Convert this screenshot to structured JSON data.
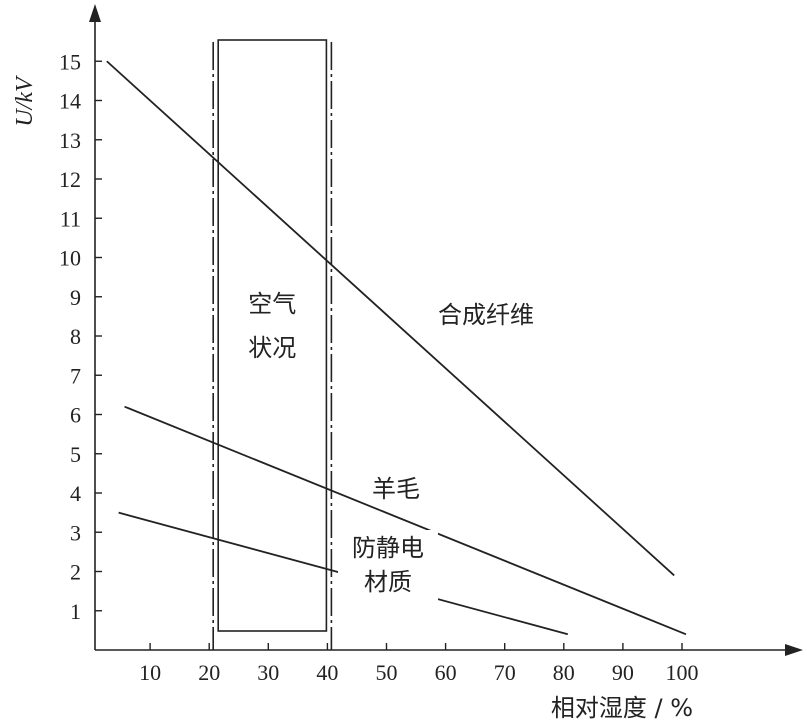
{
  "chart_data": {
    "type": "line",
    "xlabel": "相对湿度 / %",
    "ylabel": "U/kV",
    "xlim": [
      0,
      100
    ],
    "ylim": [
      0,
      15
    ],
    "x_ticks": [
      10,
      20,
      30,
      40,
      50,
      60,
      70,
      80,
      90,
      100
    ],
    "y_ticks": [
      1,
      2,
      3,
      4,
      5,
      6,
      7,
      8,
      9,
      10,
      11,
      12,
      13,
      14,
      15
    ],
    "grid": false,
    "band": {
      "label_lines": [
        "空气",
        "状况"
      ],
      "x_range": [
        20,
        40
      ]
    },
    "series": [
      {
        "name": "合成纤维",
        "x": [
          2,
          98
        ],
        "y": [
          15,
          1.9
        ]
      },
      {
        "name": "羊毛",
        "x": [
          5,
          100
        ],
        "y": [
          6.2,
          0.4
        ]
      },
      {
        "name": "防静电\n材质",
        "x": [
          4,
          80
        ],
        "y": [
          3.5,
          0.4
        ]
      }
    ]
  }
}
